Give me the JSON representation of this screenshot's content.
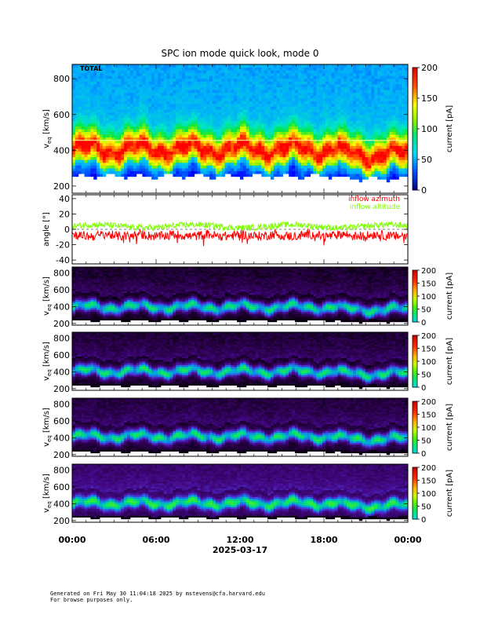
{
  "title": "SPC ion mode quick look, mode 0",
  "chart_data": [
    {
      "type": "heatmap",
      "panel_label": "TOTAL",
      "ylabel_main": "v",
      "ylabel_sub": "eq",
      "ylabel_unit": " [km/s]",
      "yticks": [
        200,
        400,
        600,
        800
      ],
      "ylim": [
        160,
        880
      ],
      "colorbar_label": "current [pA]",
      "colorbar_ticks": [
        0,
        50,
        100,
        150,
        200
      ],
      "colorbar_range": [
        0,
        200
      ],
      "color_scale": "rainbow",
      "reference_line_veq": 455,
      "core_speed_kms": 410,
      "background_level": 0.4
    },
    {
      "type": "line",
      "ylabel": "angle [°]",
      "yticks": [
        -40,
        -20,
        0,
        20,
        40
      ],
      "ylim": [
        -45,
        45
      ],
      "zero_line": true,
      "series": [
        {
          "name": "inflow azimuth",
          "color": "#ff0000",
          "mean_deg": -6,
          "spread_deg": 6
        },
        {
          "name": "inflow altitude",
          "color": "#7fff00",
          "mean_deg": 4,
          "spread_deg": 4
        }
      ]
    },
    {
      "type": "heatmap",
      "ylabel_main": "v",
      "ylabel_sub": "eq",
      "ylabel_unit": " [km/s]",
      "yticks": [
        200,
        400,
        600,
        800
      ],
      "ylim": [
        180,
        870
      ],
      "colorbar_label": "current [pA]",
      "colorbar_ticks": [
        0,
        50,
        100,
        150,
        200
      ],
      "colorbar_range": [
        0,
        200
      ],
      "color_scale": "black-purple-green",
      "core_speed_kms": 400,
      "background_level": 0.04
    },
    {
      "type": "heatmap",
      "ylabel_main": "v",
      "ylabel_sub": "eq",
      "ylabel_unit": " [km/s]",
      "yticks": [
        200,
        400,
        600,
        800
      ],
      "ylim": [
        180,
        870
      ],
      "colorbar_label": "current [pA]",
      "colorbar_ticks": [
        0,
        50,
        100,
        150,
        200
      ],
      "colorbar_range": [
        0,
        200
      ],
      "color_scale": "black-purple-green",
      "core_speed_kms": 410,
      "background_level": 0.05
    },
    {
      "type": "heatmap",
      "ylabel_main": "v",
      "ylabel_sub": "eq",
      "ylabel_unit": " [km/s]",
      "yticks": [
        200,
        400,
        600,
        800
      ],
      "ylim": [
        180,
        870
      ],
      "colorbar_label": "current [pA]",
      "colorbar_ticks": [
        0,
        50,
        100,
        150,
        200
      ],
      "colorbar_range": [
        0,
        200
      ],
      "color_scale": "black-purple-green",
      "core_speed_kms": 420,
      "background_level": 0.06
    },
    {
      "type": "heatmap",
      "ylabel_main": "v",
      "ylabel_sub": "eq",
      "ylabel_unit": " [km/s]",
      "yticks": [
        200,
        400,
        600,
        800
      ],
      "ylim": [
        180,
        870
      ],
      "colorbar_label": "current [pA]",
      "colorbar_ticks": [
        0,
        50,
        100,
        150,
        200
      ],
      "colorbar_range": [
        0,
        200
      ],
      "color_scale": "black-purple-green",
      "core_speed_kms": 410,
      "background_level": 0.12
    }
  ],
  "xaxis": {
    "ticks": [
      "00:00",
      "06:00",
      "12:00",
      "18:00",
      "00:00"
    ],
    "date_label": "2025-03-17",
    "range_hours": [
      0,
      24
    ]
  },
  "footer": {
    "line1": "Generated on Fri May 30 11:04:18 2025 by mstevens@cfa.harvard.edu",
    "line2": "For browse purposes only."
  }
}
